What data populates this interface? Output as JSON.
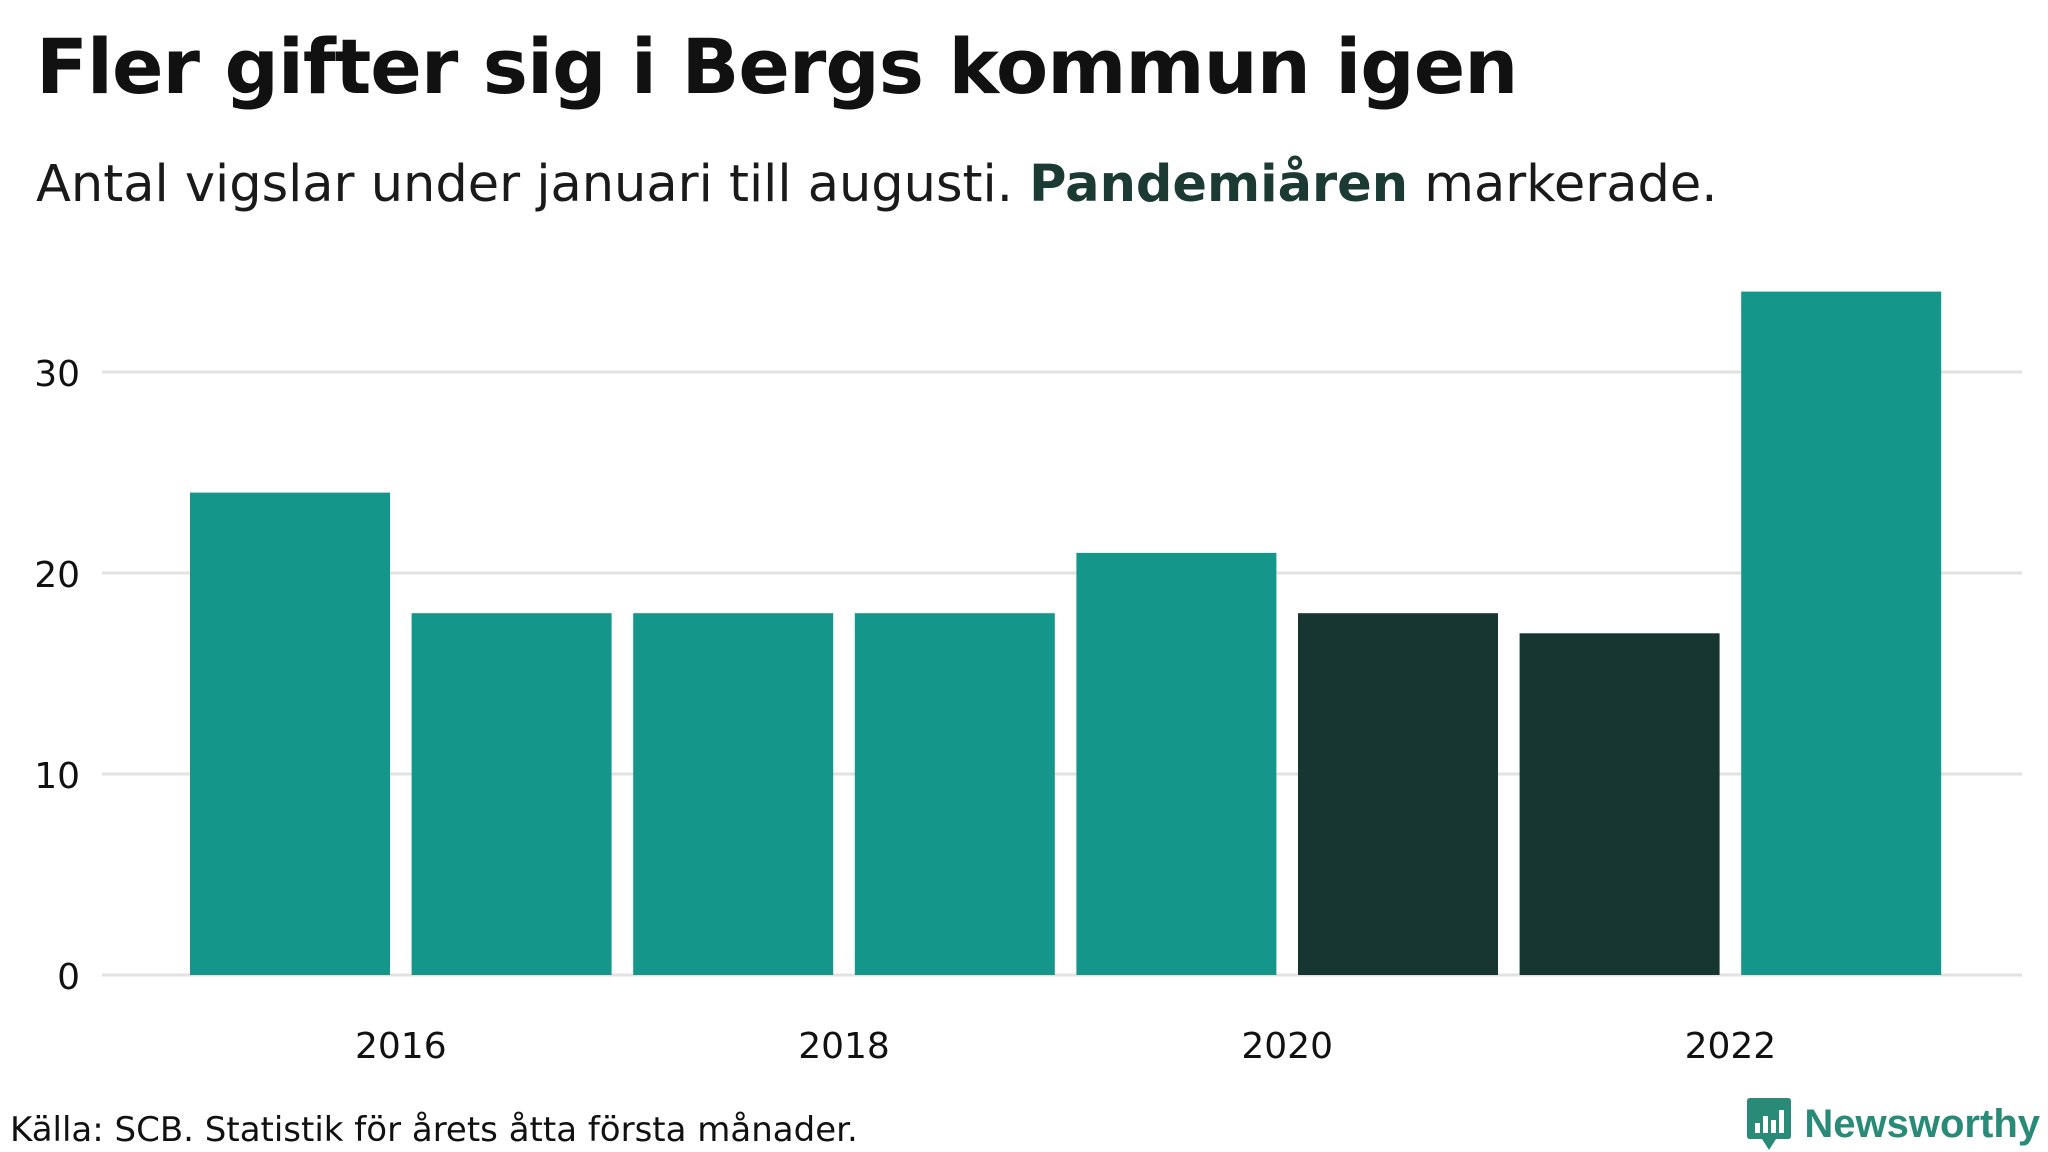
{
  "title": "Fler gifter sig i Bergs kommun igen",
  "subtitle": {
    "before": "Antal vigslar under januari till augusti. ",
    "highlight": "Pandemiåren",
    "after": " markerade."
  },
  "source": "Källa: SCB. Statistik för årets åtta första månader.",
  "brand": {
    "name": "Newsworthy",
    "icon": "newsworthy-logo-icon"
  },
  "colors": {
    "normal": "#14968a",
    "pandemic": "#183631",
    "grid": "#e2e2e2"
  },
  "chart_data": {
    "type": "bar",
    "categories": [
      "2015",
      "2016",
      "2017",
      "2018",
      "2019",
      "2020",
      "2021",
      "2022"
    ],
    "values": [
      24,
      18,
      18,
      18,
      21,
      18,
      17,
      34
    ],
    "highlighted": [
      "2020",
      "2021"
    ],
    "x_tick_labels": [
      "2016",
      "2018",
      "2020",
      "2022"
    ],
    "y_ticks": [
      0,
      10,
      20,
      30
    ],
    "ylim": [
      0,
      34
    ],
    "grid": true,
    "xlabel": "",
    "ylabel": ""
  }
}
